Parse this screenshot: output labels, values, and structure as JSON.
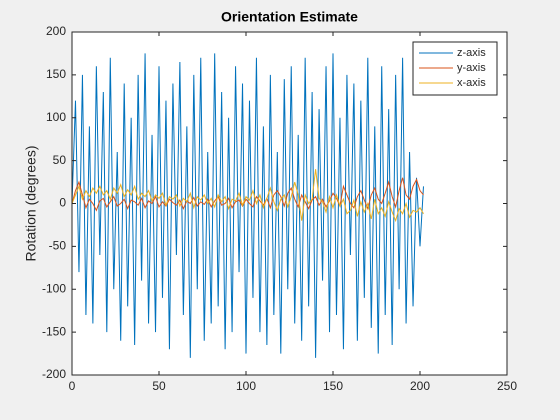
{
  "chart_data": {
    "type": "line",
    "title": "Orientation Estimate",
    "y_label": "Rotation (degrees)",
    "x": [
      0,
      2,
      4,
      6,
      8,
      10,
      12,
      14,
      16,
      18,
      20,
      22,
      24,
      26,
      28,
      30,
      32,
      34,
      36,
      38,
      40,
      42,
      44,
      46,
      48,
      50,
      52,
      54,
      56,
      58,
      60,
      62,
      64,
      66,
      68,
      70,
      72,
      74,
      76,
      78,
      80,
      82,
      84,
      86,
      88,
      90,
      92,
      94,
      96,
      98,
      100,
      102,
      104,
      106,
      108,
      110,
      112,
      114,
      116,
      118,
      120,
      122,
      124,
      126,
      128,
      130,
      132,
      134,
      136,
      138,
      140,
      142,
      144,
      146,
      148,
      150,
      152,
      154,
      156,
      158,
      160,
      162,
      164,
      166,
      168,
      170,
      172,
      174,
      176,
      178,
      180,
      182,
      184,
      186,
      188,
      190,
      192,
      194,
      196,
      198,
      200,
      202
    ],
    "series": [
      {
        "name": "z-axis",
        "color": "#0072BD",
        "values": [
          0,
          120,
          -80,
          150,
          -130,
          90,
          -140,
          160,
          -60,
          130,
          -150,
          170,
          -100,
          60,
          -160,
          140,
          -120,
          100,
          -165,
          150,
          -90,
          175,
          -140,
          80,
          -150,
          160,
          -110,
          120,
          -170,
          140,
          -60,
          165,
          -130,
          90,
          -180,
          150,
          -100,
          170,
          -160,
          60,
          -140,
          175,
          -120,
          130,
          -170,
          100,
          -150,
          160,
          -80,
          140,
          -175,
          120,
          -110,
          170,
          -150,
          90,
          -165,
          150,
          -130,
          60,
          -175,
          145,
          -100,
          160,
          -140,
          80,
          -160,
          170,
          -120,
          130,
          -180,
          110,
          -90,
          160,
          -150,
          175,
          -130,
          100,
          -170,
          150,
          -60,
          140,
          -160,
          120,
          -110,
          170,
          -145,
          90,
          -175,
          160,
          -130,
          110,
          -165,
          150,
          -100,
          170,
          -140,
          60,
          -120,
          30,
          -50,
          20
        ]
      },
      {
        "name": "y-axis",
        "color": "#D95319",
        "values": [
          0,
          15,
          25,
          10,
          -5,
          5,
          0,
          -8,
          3,
          6,
          -4,
          2,
          8,
          -3,
          0,
          5,
          -6,
          4,
          2,
          -2,
          6,
          -5,
          3,
          0,
          8,
          -4,
          2,
          -3,
          5,
          1,
          -2,
          4,
          -6,
          3,
          0,
          7,
          -3,
          2,
          -1,
          5,
          -4,
          3,
          8,
          -2,
          0,
          6,
          -5,
          2,
          4,
          -3,
          5,
          0,
          -4,
          8,
          3,
          -2,
          6,
          -5,
          10,
          15,
          8,
          -3,
          12,
          18,
          5,
          -4,
          10,
          2,
          -6,
          4,
          8,
          -2,
          5,
          -4,
          3,
          12,
          6,
          -3,
          20,
          10,
          0,
          -5,
          8,
          15,
          4,
          -6,
          10,
          18,
          5,
          0,
          12,
          25,
          8,
          -4,
          15,
          30,
          10,
          5,
          20,
          28,
          15,
          10
        ]
      },
      {
        "name": "x-axis",
        "color": "#EDB120",
        "values": [
          0,
          10,
          20,
          5,
          15,
          8,
          18,
          12,
          20,
          10,
          15,
          5,
          18,
          12,
          22,
          8,
          16,
          10,
          20,
          5,
          12,
          8,
          15,
          3,
          10,
          6,
          12,
          -2,
          8,
          5,
          10,
          -3,
          6,
          2,
          12,
          -5,
          8,
          4,
          10,
          0,
          6,
          -4,
          10,
          2,
          8,
          -6,
          5,
          3,
          12,
          -2,
          8,
          4,
          15,
          0,
          10,
          -5,
          6,
          18,
          2,
          -8,
          5,
          10,
          -4,
          8,
          25,
          10,
          -20,
          10,
          0,
          5,
          40,
          6,
          2,
          -10,
          8,
          -5,
          10,
          -3,
          5,
          -12,
          -8,
          4,
          -15,
          2,
          -10,
          0,
          -18,
          5,
          -12,
          -5,
          -15,
          2,
          -10,
          -20,
          -6,
          -12,
          0,
          -16,
          -8,
          -10,
          -5,
          -12
        ]
      }
    ],
    "xlim": [
      0,
      250
    ],
    "xticks": [
      0,
      50,
      100,
      150,
      200,
      250
    ],
    "ylim": [
      -200,
      200
    ],
    "yticks": [
      -200,
      -150,
      -100,
      -50,
      0,
      50,
      100,
      150,
      200
    ],
    "legend": "northeast"
  }
}
